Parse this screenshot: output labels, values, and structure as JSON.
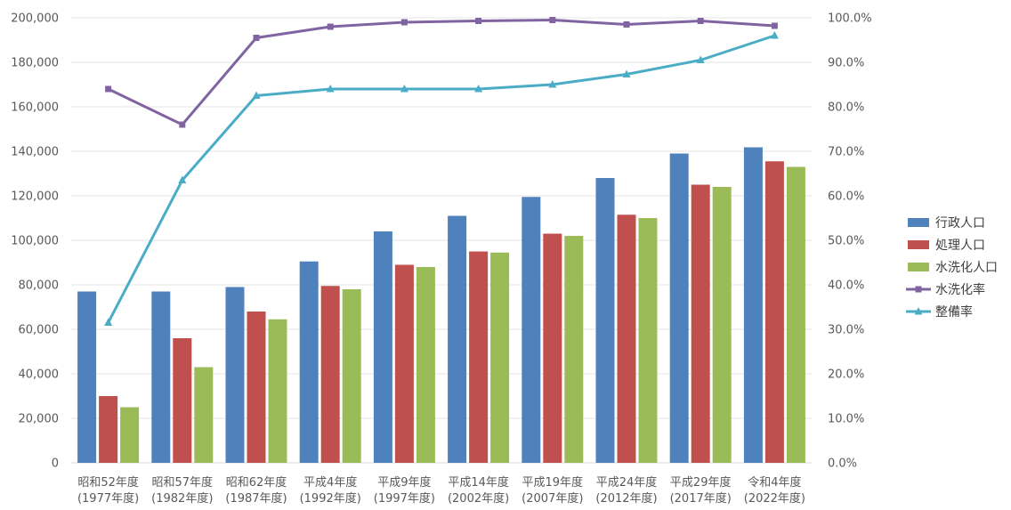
{
  "chart_data": {
    "type": "bar",
    "categories": [
      [
        "昭和52年度",
        "(1977年度)"
      ],
      [
        "昭和57年度",
        "(1982年度)"
      ],
      [
        "昭和62年度",
        "(1987年度)"
      ],
      [
        "平成4年度",
        "(1992年度)"
      ],
      [
        "平成9年度",
        "(1997年度)"
      ],
      [
        "平成14年度",
        "(2002年度)"
      ],
      [
        "平成19年度",
        "(2007年度)"
      ],
      [
        "平成24年度",
        "(2012年度)"
      ],
      [
        "平成29年度",
        "(2017年度)"
      ],
      [
        "令和4年度",
        "(2022年度)"
      ]
    ],
    "series": [
      {
        "name": "行政人口",
        "kind": "bar",
        "axis": "left",
        "color": "#4F81BD",
        "values": [
          77000,
          77000,
          79000,
          90500,
          104000,
          111000,
          119500,
          128000,
          139000,
          141800
        ]
      },
      {
        "name": "処理人口",
        "kind": "bar",
        "axis": "left",
        "color": "#C0504D",
        "values": [
          30000,
          56000,
          68000,
          79500,
          89000,
          95000,
          103000,
          111500,
          125000,
          135500
        ]
      },
      {
        "name": "水洗化人口",
        "kind": "bar",
        "axis": "left",
        "color": "#9BBB59",
        "values": [
          25000,
          43000,
          64500,
          78000,
          88000,
          94500,
          102000,
          110000,
          124000,
          133000
        ]
      },
      {
        "name": "水洗化率",
        "kind": "line",
        "axis": "right",
        "marker": "square",
        "color": "#8064A2",
        "values": [
          0.84,
          0.76,
          0.955,
          0.98,
          0.99,
          0.993,
          0.995,
          0.985,
          0.993,
          0.982
        ]
      },
      {
        "name": "整備率",
        "kind": "line",
        "axis": "right",
        "marker": "triangle",
        "color": "#4BACC6",
        "values": [
          0.315,
          0.635,
          0.825,
          0.84,
          0.84,
          0.84,
          0.85,
          0.873,
          0.905,
          0.96
        ]
      }
    ],
    "y_left": {
      "lim": [
        0,
        200000
      ],
      "ticks": [
        0,
        20000,
        40000,
        60000,
        80000,
        100000,
        120000,
        140000,
        160000,
        180000,
        200000
      ],
      "tick_labels": [
        "0",
        "20,000",
        "40,000",
        "60,000",
        "80,000",
        "100,000",
        "120,000",
        "140,000",
        "160,000",
        "180,000",
        "200,000"
      ]
    },
    "y_right": {
      "lim": [
        0,
        1
      ],
      "ticks": [
        0,
        0.1,
        0.2,
        0.3,
        0.4,
        0.5,
        0.6,
        0.7,
        0.8,
        0.9,
        1.0
      ],
      "tick_labels": [
        "0.0%",
        "10.0%",
        "20.0%",
        "30.0%",
        "40.0%",
        "50.0%",
        "60.0%",
        "70.0%",
        "80.0%",
        "90.0%",
        "100.0%"
      ]
    },
    "grid": true,
    "legend_position": "right"
  }
}
